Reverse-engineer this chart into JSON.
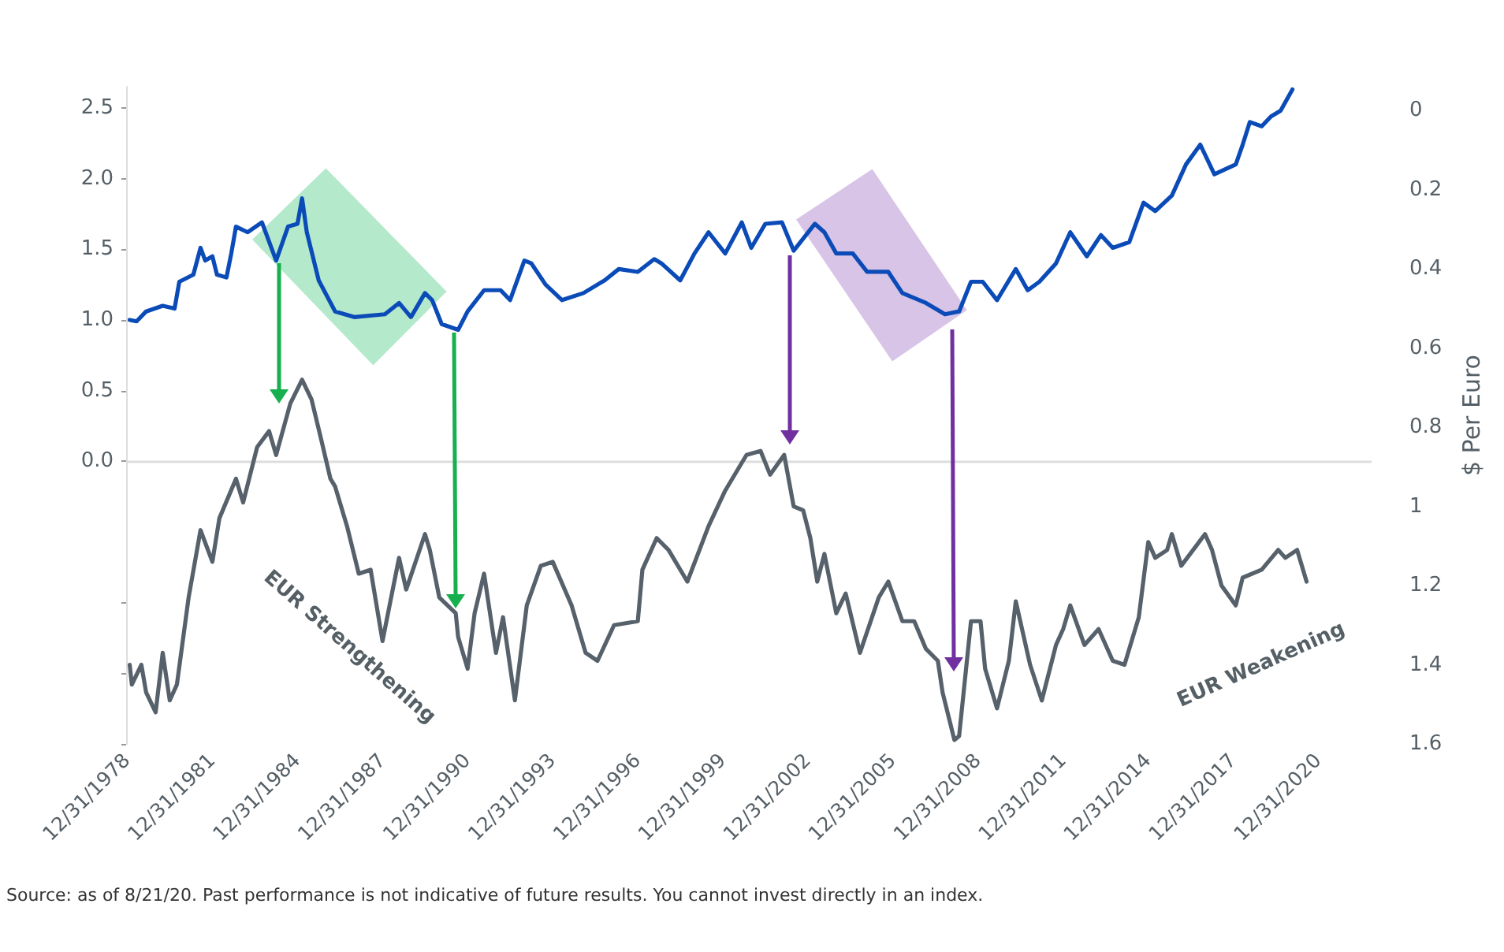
{
  "chart_data": {
    "type": "line",
    "y2label": "$ Per Euro",
    "annotations": [
      {
        "text": "EUR Strengthening",
        "x": "1990-01",
        "y": -1.05
      },
      "EUR Weakening",
      "Source: as of 8/21/20. Past performance is not indicative of future results. You cannot invest directly in an index."
    ],
    "series": [
      {
        "color": "#0b4bb8",
        "x": [
          "1979-02",
          "1979-05",
          "1979-09",
          "1980-04",
          "1980-09",
          "1980-11",
          "1981-05",
          "1981-08",
          "1981-10",
          "1982-01",
          "1982-03",
          "1982-07",
          "1982-09",
          "1982-11",
          "1983-04",
          "1983-10",
          "1984-04",
          "1984-09",
          "1985-01",
          "1985-03",
          "1985-05",
          "1985-10",
          "1986-05",
          "1987-01",
          "1988-02",
          "1988-08",
          "1989-01",
          "1989-07",
          "1989-10",
          "1990-02",
          "1990-09",
          "1991-01",
          "1991-08",
          "1992-03",
          "1992-07",
          "1993-01",
          "1993-04",
          "1993-10",
          "1994-05",
          "1995-02",
          "1995-11",
          "1996-05",
          "1997-01",
          "1997-08",
          "1997-11",
          "1998-07",
          "1999-01",
          "1999-07",
          "2000-02",
          "2000-09",
          "2001-01",
          "2001-07",
          "2002-02",
          "2002-07",
          "2003-04",
          "2003-08",
          "2004-01",
          "2004-08",
          "2005-02",
          "2005-11",
          "2006-05",
          "2007-03",
          "2007-11",
          "2008-05",
          "2008-10",
          "2009-03",
          "2009-09",
          "2010-05",
          "2010-10",
          "2011-03",
          "2011-10",
          "2012-04",
          "2012-11",
          "2013-05",
          "2013-10",
          "2014-05",
          "2014-11",
          "2015-04",
          "2015-11",
          "2016-05",
          "2016-11",
          "2017-05",
          "2018-02",
          "2018-05",
          "2018-08",
          "2019-01",
          "2019-05",
          "2019-09",
          "2020-02"
        ],
        "values": [
          1.0,
          0.99,
          1.06,
          1.1,
          1.08,
          1.27,
          1.32,
          1.51,
          1.42,
          1.45,
          1.32,
          1.3,
          1.47,
          1.66,
          1.62,
          1.69,
          1.42,
          1.66,
          1.68,
          1.86,
          1.62,
          1.28,
          1.06,
          1.02,
          1.04,
          1.12,
          1.02,
          1.19,
          1.14,
          0.97,
          0.93,
          1.06,
          1.21,
          1.21,
          1.14,
          1.42,
          1.4,
          1.25,
          1.14,
          1.19,
          1.28,
          1.36,
          1.34,
          1.43,
          1.4,
          1.28,
          1.47,
          1.62,
          1.47,
          1.69,
          1.51,
          1.68,
          1.69,
          1.49,
          1.68,
          1.62,
          1.47,
          1.47,
          1.34,
          1.34,
          1.19,
          1.12,
          1.04,
          1.06,
          1.27,
          1.27,
          1.14,
          1.36,
          1.21,
          1.27,
          1.4,
          1.62,
          1.45,
          1.6,
          1.51,
          1.55,
          1.83,
          1.77,
          1.88,
          2.1,
          2.24,
          2.03,
          2.1,
          2.24,
          2.4,
          2.37,
          2.44,
          2.48,
          2.63
        ]
      },
      {
        "color": "#56616b",
        "axis": "y2",
        "x": [
          "1979-02",
          "1979-03",
          "1979-07",
          "1979-09",
          "1980-01",
          "1980-04",
          "1980-07",
          "1980-10",
          "1981-03",
          "1981-08",
          "1982-01",
          "1982-04",
          "1982-11",
          "1983-02",
          "1983-08",
          "1984-01",
          "1984-04",
          "1984-10",
          "1985-03",
          "1985-07",
          "1985-11",
          "1986-03",
          "1986-05",
          "1986-10",
          "1987-03",
          "1987-08",
          "1988-01",
          "1988-04",
          "1988-08",
          "1988-11",
          "1989-07",
          "1989-09",
          "1990-01",
          "1990-08",
          "1990-09",
          "1991-01",
          "1991-04",
          "1991-08",
          "1992-01",
          "1992-04",
          "1992-09",
          "1993-02",
          "1993-08",
          "1994-01",
          "1994-09",
          "1995-03",
          "1995-08",
          "1996-03",
          "1997-01",
          "1997-03",
          "1997-09",
          "1998-02",
          "1998-10",
          "1999-07",
          "2000-02",
          "2000-09",
          "2000-11",
          "2001-05",
          "2001-09",
          "2002-03",
          "2002-07",
          "2002-11",
          "2003-02",
          "2003-05",
          "2003-08",
          "2004-01",
          "2004-05",
          "2004-11",
          "2005-07",
          "2005-11",
          "2006-05",
          "2006-10",
          "2007-03",
          "2007-08",
          "2007-10",
          "2008-03",
          "2008-05",
          "2008-10",
          "2009-02",
          "2009-04",
          "2009-09",
          "2010-02",
          "2010-05",
          "2010-11",
          "2011-04",
          "2011-10",
          "2012-01",
          "2012-04",
          "2012-10",
          "2013-04",
          "2013-10",
          "2014-03",
          "2014-09",
          "2015-01",
          "2015-04",
          "2015-09",
          "2015-11",
          "2016-03",
          "2017-01",
          "2017-04",
          "2017-08",
          "2018-02",
          "2018-05",
          "2019-01",
          "2019-08",
          "2019-11",
          "2020-04",
          "2020-08"
        ],
        "values": [
          1.4,
          1.45,
          1.4,
          1.47,
          1.52,
          1.37,
          1.49,
          1.45,
          1.23,
          1.06,
          1.14,
          1.03,
          0.93,
          0.99,
          0.85,
          0.81,
          0.87,
          0.74,
          0.68,
          0.73,
          0.83,
          0.93,
          0.95,
          1.05,
          1.17,
          1.16,
          1.34,
          1.25,
          1.13,
          1.21,
          1.07,
          1.11,
          1.23,
          1.27,
          1.33,
          1.41,
          1.27,
          1.17,
          1.37,
          1.28,
          1.49,
          1.25,
          1.15,
          1.14,
          1.25,
          1.37,
          1.39,
          1.3,
          1.29,
          1.16,
          1.08,
          1.11,
          1.19,
          1.05,
          0.96,
          0.89,
          0.87,
          0.86,
          0.92,
          0.87,
          1.0,
          1.01,
          1.08,
          1.19,
          1.12,
          1.27,
          1.22,
          1.37,
          1.23,
          1.19,
          1.29,
          1.29,
          1.36,
          1.39,
          1.47,
          1.59,
          1.58,
          1.29,
          1.29,
          1.41,
          1.51,
          1.39,
          1.24,
          1.4,
          1.49,
          1.35,
          1.31,
          1.25,
          1.35,
          1.31,
          1.39,
          1.4,
          1.28,
          1.09,
          1.13,
          1.11,
          1.07,
          1.15,
          1.07,
          1.11,
          1.2,
          1.25,
          1.18,
          1.16,
          1.11,
          1.13,
          1.11,
          1.19
        ]
      }
    ],
    "xlim": [
      "1978-12-31",
      "2022-11-30"
    ],
    "xticks": [
      {
        "value": "1978-12-31",
        "label": "12/31/1978"
      },
      {
        "value": "1981-12-31",
        "label": "12/31/1981"
      },
      {
        "value": "1984-12-31",
        "label": "12/31/1984"
      },
      {
        "value": "1987-12-31",
        "label": "12/31/1987"
      },
      {
        "value": "1990-12-31",
        "label": "12/31/1990"
      },
      {
        "value": "1993-12-31",
        "label": "12/31/1993"
      },
      {
        "value": "1996-12-31",
        "label": "12/31/1996"
      },
      {
        "value": "1999-12-31",
        "label": "12/31/1999"
      },
      {
        "value": "2002-12-31",
        "label": "12/31/2002"
      },
      {
        "value": "2005-12-31",
        "label": "12/31/2005"
      },
      {
        "value": "2008-12-31",
        "label": "12/31/2008"
      },
      {
        "value": "2011-12-31",
        "label": "12/31/2011"
      },
      {
        "value": "2014-12-31",
        "label": "12/31/2014"
      },
      {
        "value": "2017-12-31",
        "label": "12/31/2017"
      },
      {
        "value": "2020-12-31",
        "label": "12/31/2020"
      }
    ],
    "ylim": [
      -2.0,
      2.65
    ],
    "yticks": [
      {
        "value": -2.0,
        "label": null
      },
      {
        "value": -1.5,
        "label": null
      },
      {
        "value": -1.0,
        "label": null
      },
      {
        "value": 0,
        "label": "0.0"
      },
      {
        "value": 0.5,
        "label": "0.5"
      },
      {
        "value": 1,
        "label": "1.0"
      },
      {
        "value": 1.5,
        "label": "1.5"
      },
      {
        "value": 2,
        "label": "2.0"
      },
      {
        "value": 2.5,
        "label": "2.5"
      }
    ],
    "y2lim": [
      1.6,
      -0.06
    ],
    "y2ticks": [
      0,
      0.2,
      0.4,
      0.6,
      0.8,
      1,
      1.2,
      1.4,
      1.6
    ],
    "ref_lines": [
      {
        "axis": "y",
        "value": 0,
        "color": "#dddddd"
      }
    ],
    "grid": false,
    "marker": "none",
    "line_style": "solid"
  }
}
